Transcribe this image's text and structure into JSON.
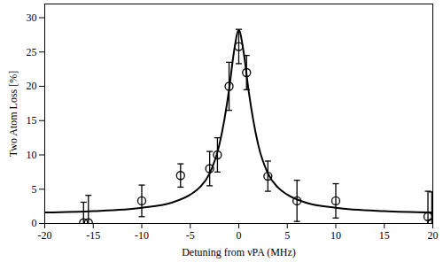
{
  "chart_data": {
    "type": "scatter",
    "x_label": "Detuning from νPA (MHz)",
    "y_label": "Two Atom Loss [%]",
    "xlim": [
      -20,
      20
    ],
    "xticks": [
      -20,
      -15,
      -10,
      -5,
      0,
      5,
      10,
      15,
      20
    ],
    "ylim": [
      0,
      32
    ],
    "yticks": [
      0,
      5,
      10,
      15,
      20,
      25,
      30
    ],
    "grid": false,
    "series": [
      {
        "type": "scatter",
        "marker": "circle",
        "color": "#000000",
        "x": [
          -16,
          -15.5,
          -10,
          -6,
          -3,
          -2.2,
          -1,
          0,
          0.8,
          3,
          6,
          10,
          19.5,
          19.9
        ],
        "values": [
          0.1,
          0.1,
          3.3,
          7.0,
          8.0,
          10.0,
          20.0,
          25.8,
          22.0,
          6.9,
          3.3,
          3.3,
          1.0,
          0.1
        ],
        "errors": [
          3.0,
          4.0,
          2.3,
          1.7,
          2.5,
          2.5,
          3.5,
          2.5,
          2.5,
          2.2,
          3.0,
          2.5,
          3.7,
          4.5
        ]
      },
      {
        "type": "line",
        "line_style": "solid",
        "color": "#000000",
        "x": [
          -20,
          -15,
          -10,
          -7,
          -5,
          -4,
          -3,
          -2,
          -1,
          -0.5,
          0,
          0.5,
          1,
          2,
          3,
          4,
          5,
          7,
          10,
          15,
          20
        ],
        "values": [
          1.6,
          1.8,
          2.3,
          3.0,
          4.2,
          5.3,
          7.3,
          11.5,
          19.5,
          25.0,
          28.2,
          25.0,
          19.5,
          11.5,
          7.3,
          5.3,
          4.2,
          3.0,
          2.3,
          1.8,
          1.6
        ]
      }
    ]
  }
}
